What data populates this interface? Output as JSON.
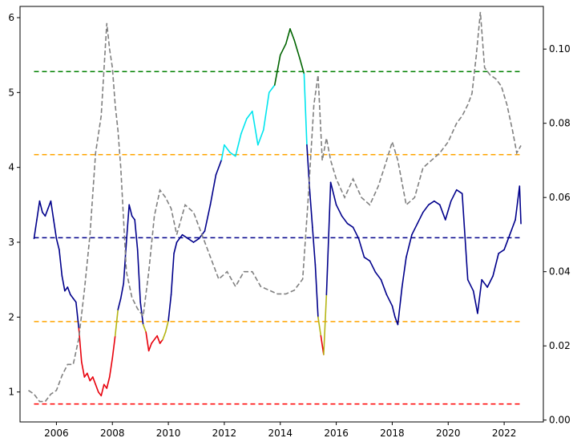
{
  "chart_data": {
    "type": "line",
    "title": "",
    "xlabel": "",
    "ylabel": "",
    "y2label": "",
    "xlim": [
      2004.7,
      2023.4
    ],
    "ylim": [
      0.6,
      6.15
    ],
    "y2lim": [
      -0.0005,
      0.1115
    ],
    "x_ticks": [
      2006,
      2008,
      2010,
      2012,
      2014,
      2016,
      2018,
      2020,
      2022
    ],
    "y_ticks": [
      1,
      2,
      3,
      4,
      5,
      6
    ],
    "y2_ticks": [
      0.0,
      0.02,
      0.04,
      0.06,
      0.08,
      0.1
    ],
    "grid": false,
    "legend": "none",
    "x_tick_labels": [
      "2006",
      "2008",
      "2010",
      "2012",
      "2014",
      "2016",
      "2018",
      "2020",
      "2022"
    ],
    "y_tick_labels": [
      "1",
      "2",
      "3",
      "4",
      "5",
      "6"
    ],
    "y2_tick_labels": [
      "0.00",
      "0.02",
      "0.04",
      "0.06",
      "0.08",
      "0.10"
    ],
    "reference_lines": [
      {
        "y": 5.28,
        "color": "#008000",
        "style": "dashed"
      },
      {
        "y": 4.17,
        "color": "#ffa500",
        "style": "dashed"
      },
      {
        "y": 3.06,
        "color": "#00008b",
        "style": "dashed"
      },
      {
        "y": 1.94,
        "color": "#ffa500",
        "style": "dashed"
      },
      {
        "y": 0.84,
        "color": "#ff0000",
        "style": "dashed"
      }
    ],
    "reference_line_x_range": [
      2005.2,
      2022.6
    ],
    "band_colors": {
      "high": "#006400",
      "upper": "#00e5ee",
      "middle": "#00008b",
      "lower": "#b5b514",
      "low": "#e8000b"
    },
    "series": [
      {
        "axis": "left",
        "style": "solid",
        "color_by_band": true,
        "x": [
          2005.2,
          2005.3,
          2005.4,
          2005.5,
          2005.6,
          2005.7,
          2005.8,
          2005.9,
          2006.0,
          2006.1,
          2006.2,
          2006.3,
          2006.4,
          2006.5,
          2006.6,
          2006.7,
          2006.8,
          2006.9,
          2007.0,
          2007.1,
          2007.2,
          2007.3,
          2007.4,
          2007.5,
          2007.6,
          2007.7,
          2007.8,
          2007.9,
          2008.0,
          2008.1,
          2008.2,
          2008.3,
          2008.4,
          2008.5,
          2008.6,
          2008.7,
          2008.8,
          2008.9,
          2009.0,
          2009.1,
          2009.2,
          2009.3,
          2009.4,
          2009.5,
          2009.6,
          2009.7,
          2009.8,
          2009.9,
          2010.0,
          2010.1,
          2010.2,
          2010.3,
          2010.5,
          2010.7,
          2010.9,
          2011.1,
          2011.3,
          2011.5,
          2011.7,
          2011.9,
          2012.0,
          2012.2,
          2012.4,
          2012.6,
          2012.8,
          2013.0,
          2013.2,
          2013.4,
          2013.6,
          2013.8,
          2014.0,
          2014.2,
          2014.35,
          2014.5,
          2014.7,
          2014.85,
          2014.95,
          2015.05,
          2015.15,
          2015.25,
          2015.35,
          2015.45,
          2015.55,
          2015.65,
          2015.8,
          2016.0,
          2016.2,
          2016.4,
          2016.6,
          2016.8,
          2017.0,
          2017.2,
          2017.4,
          2017.6,
          2017.8,
          2018.0,
          2018.1,
          2018.2,
          2018.35,
          2018.5,
          2018.7,
          2018.9,
          2019.1,
          2019.3,
          2019.5,
          2019.7,
          2019.9,
          2020.1,
          2020.3,
          2020.5,
          2020.7,
          2020.9,
          2021.05,
          2021.2,
          2021.4,
          2021.6,
          2021.8,
          2022.0,
          2022.2,
          2022.4,
          2022.55,
          2022.6
        ],
        "y": [
          3.05,
          3.3,
          3.55,
          3.4,
          3.35,
          3.45,
          3.55,
          3.3,
          3.05,
          2.9,
          2.55,
          2.35,
          2.4,
          2.3,
          2.25,
          2.2,
          1.85,
          1.4,
          1.2,
          1.25,
          1.15,
          1.2,
          1.1,
          1.0,
          0.95,
          1.1,
          1.05,
          1.2,
          1.45,
          1.75,
          2.1,
          2.25,
          2.45,
          3.0,
          3.5,
          3.35,
          3.3,
          2.9,
          2.2,
          1.9,
          1.8,
          1.55,
          1.65,
          1.7,
          1.75,
          1.65,
          1.7,
          1.8,
          1.95,
          2.3,
          2.85,
          3.0,
          3.1,
          3.05,
          3.0,
          3.05,
          3.15,
          3.5,
          3.9,
          4.1,
          4.3,
          4.2,
          4.15,
          4.45,
          4.65,
          4.75,
          4.3,
          4.5,
          5.0,
          5.1,
          5.5,
          5.65,
          5.85,
          5.7,
          5.45,
          5.25,
          4.3,
          3.7,
          3.2,
          2.7,
          2.0,
          1.75,
          1.5,
          2.3,
          3.8,
          3.5,
          3.35,
          3.25,
          3.2,
          3.05,
          2.8,
          2.75,
          2.6,
          2.5,
          2.3,
          2.15,
          2.0,
          1.9,
          2.4,
          2.8,
          3.1,
          3.25,
          3.4,
          3.5,
          3.55,
          3.5,
          3.3,
          3.55,
          3.7,
          3.65,
          2.5,
          2.35,
          2.05,
          2.5,
          2.4,
          2.55,
          2.85,
          2.9,
          3.1,
          3.3,
          3.75,
          3.25
        ]
      },
      {
        "axis": "right",
        "style": "dashed",
        "color": "#808080",
        "x": [
          2005.0,
          2005.2,
          2005.4,
          2005.6,
          2005.8,
          2006.0,
          2006.2,
          2006.4,
          2006.6,
          2006.8,
          2007.0,
          2007.2,
          2007.4,
          2007.6,
          2007.8,
          2007.9,
          2008.0,
          2008.1,
          2008.2,
          2008.3,
          2008.5,
          2008.7,
          2008.9,
          2009.1,
          2009.3,
          2009.5,
          2009.7,
          2009.9,
          2010.1,
          2010.3,
          2010.6,
          2010.9,
          2011.2,
          2011.5,
          2011.8,
          2012.1,
          2012.4,
          2012.7,
          2013.0,
          2013.3,
          2013.6,
          2013.9,
          2014.2,
          2014.5,
          2014.8,
          2015.0,
          2015.2,
          2015.35,
          2015.5,
          2015.65,
          2015.8,
          2016.0,
          2016.3,
          2016.6,
          2016.9,
          2017.2,
          2017.5,
          2017.8,
          2018.0,
          2018.2,
          2018.5,
          2018.8,
          2019.1,
          2019.4,
          2019.7,
          2020.0,
          2020.3,
          2020.5,
          2020.7,
          2020.85,
          2021.0,
          2021.15,
          2021.3,
          2021.5,
          2021.7,
          2021.9,
          2022.1,
          2022.3,
          2022.45,
          2022.6
        ],
        "y": [
          0.008,
          0.007,
          0.005,
          0.005,
          0.007,
          0.008,
          0.012,
          0.015,
          0.015,
          0.022,
          0.035,
          0.05,
          0.072,
          0.082,
          0.107,
          0.1,
          0.095,
          0.085,
          0.078,
          0.068,
          0.04,
          0.033,
          0.03,
          0.028,
          0.04,
          0.055,
          0.062,
          0.06,
          0.057,
          0.05,
          0.058,
          0.056,
          0.05,
          0.044,
          0.038,
          0.04,
          0.036,
          0.04,
          0.04,
          0.036,
          0.035,
          0.034,
          0.034,
          0.035,
          0.038,
          0.06,
          0.085,
          0.093,
          0.07,
          0.076,
          0.07,
          0.065,
          0.06,
          0.065,
          0.06,
          0.058,
          0.063,
          0.07,
          0.075,
          0.07,
          0.058,
          0.06,
          0.068,
          0.07,
          0.072,
          0.075,
          0.08,
          0.082,
          0.085,
          0.088,
          0.098,
          0.11,
          0.095,
          0.093,
          0.092,
          0.09,
          0.085,
          0.078,
          0.072,
          0.074
        ]
      }
    ]
  }
}
